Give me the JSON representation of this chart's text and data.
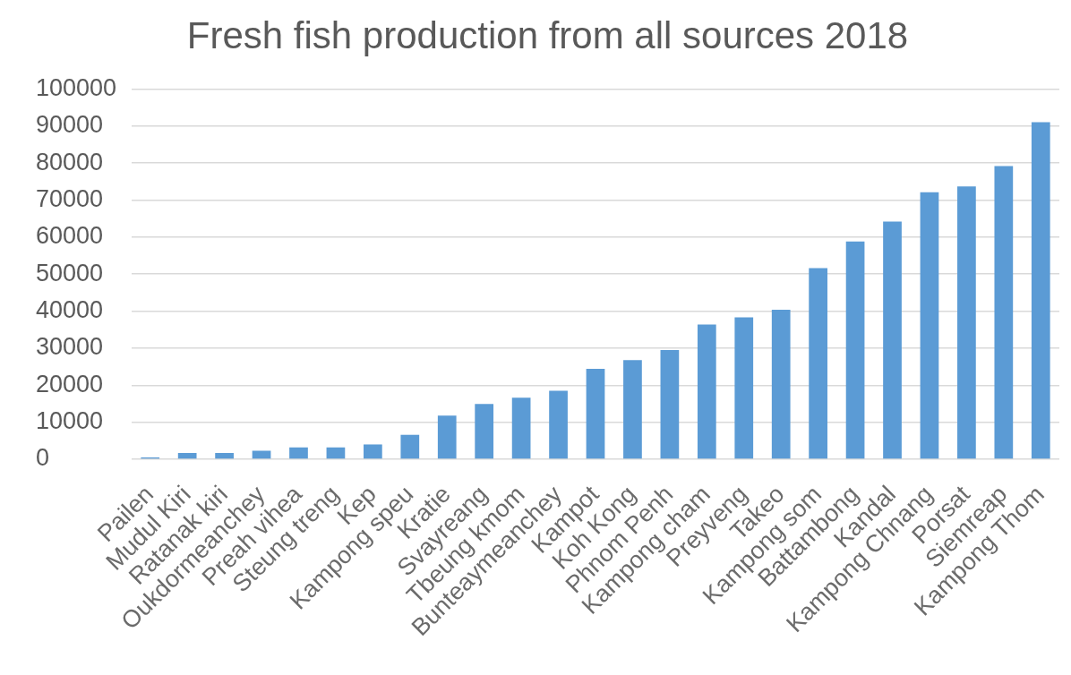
{
  "chart_data": {
    "type": "bar",
    "title": "Fresh fish production from all sources 2018",
    "categories": [
      "Pailen",
      "Mudul Kiri",
      "Ratanak kiri",
      "Oukdormeanchey",
      "Preah vihea",
      "Steung treng",
      "Kep",
      "Kampong speu",
      "Kratie",
      "Svayreang",
      "Tbeung kmom",
      "Bunteaymeanchey",
      "Kampot",
      "Koh Kong",
      "Phnom Penh",
      "Kampong cham",
      "Preyveng",
      "Takeo",
      "Kampong som",
      "Battambong",
      "Kandal",
      "Kampong Chnang",
      "Porsat",
      "Siemreap",
      "Kampong Thom"
    ],
    "values": [
      500,
      1700,
      1700,
      2300,
      3200,
      3200,
      4000,
      6600,
      11800,
      14900,
      16600,
      18500,
      24400,
      26800,
      29500,
      36400,
      38300,
      40400,
      51600,
      58800,
      64200,
      72100,
      73700,
      79200,
      91000
    ],
    "color": "#5b9bd5",
    "ylim": [
      0,
      100000
    ],
    "yticks": [
      0,
      10000,
      20000,
      30000,
      40000,
      50000,
      60000,
      70000,
      80000,
      90000,
      100000
    ],
    "grid": "y"
  }
}
